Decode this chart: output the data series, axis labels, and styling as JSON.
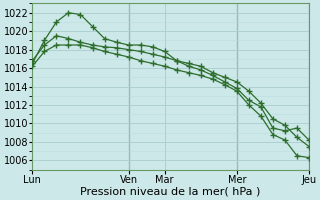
{
  "bg_color": "#cce8e8",
  "grid_major_color": "#aacccc",
  "grid_minor_color": "#bbdddd",
  "line_color": "#2d6e2d",
  "xlabel": "Pression niveau de la mer( hPa )",
  "ylim": [
    1005.0,
    1023.0
  ],
  "yticks": [
    1006,
    1008,
    1010,
    1012,
    1014,
    1016,
    1018,
    1020,
    1022
  ],
  "xtick_labels": [
    "Lun",
    "Ven",
    "Mar",
    "Mer",
    "Jeu"
  ],
  "xtick_positions": [
    0,
    8,
    11,
    17,
    23
  ],
  "vline_positions": [
    8,
    17,
    23
  ],
  "n_points": 24,
  "series1": [
    1016.5,
    1019.0,
    1021.0,
    1022.0,
    1021.8,
    1020.5,
    1019.2,
    1018.8,
    1018.5,
    1018.5,
    1018.3,
    1017.8,
    1016.8,
    1016.2,
    1015.8,
    1015.2,
    1014.5,
    1013.8,
    1012.5,
    1011.8,
    1009.5,
    1009.2,
    1009.5,
    1008.2
  ],
  "series2": [
    1016.8,
    1018.5,
    1019.5,
    1019.2,
    1018.8,
    1018.5,
    1018.3,
    1018.2,
    1018.0,
    1017.8,
    1017.5,
    1017.2,
    1016.8,
    1016.5,
    1016.2,
    1015.5,
    1015.0,
    1014.5,
    1013.5,
    1012.2,
    1010.5,
    1009.8,
    1008.5,
    1007.5
  ],
  "series3": [
    1016.2,
    1017.8,
    1018.5,
    1018.5,
    1018.5,
    1018.2,
    1017.8,
    1017.5,
    1017.2,
    1016.8,
    1016.5,
    1016.2,
    1015.8,
    1015.5,
    1015.2,
    1014.8,
    1014.2,
    1013.5,
    1012.0,
    1010.8,
    1008.8,
    1008.2,
    1006.5,
    1006.3
  ]
}
